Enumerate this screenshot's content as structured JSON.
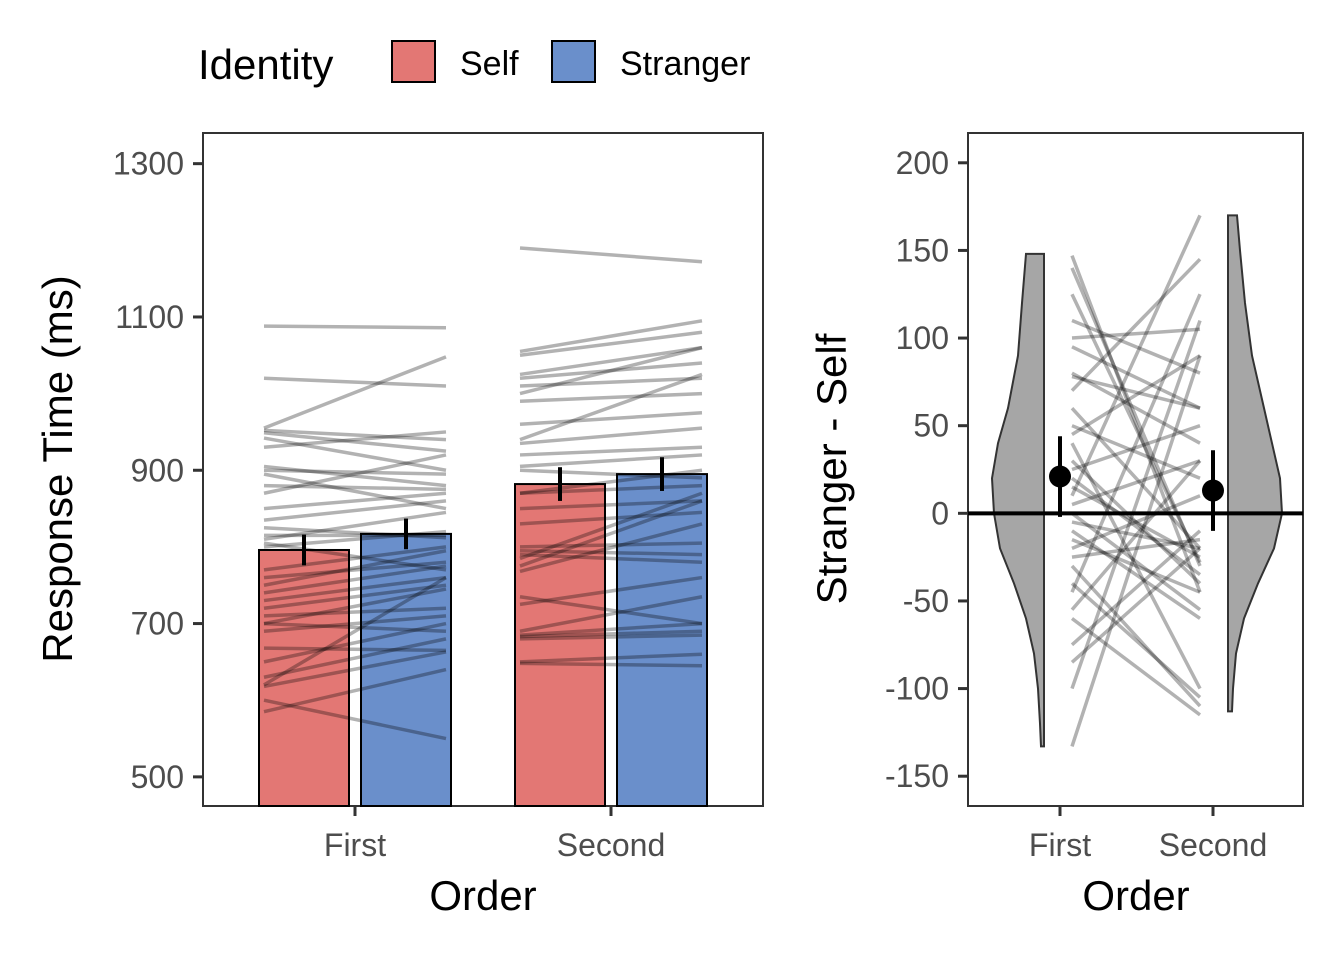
{
  "legend": {
    "title": "Identity",
    "items": [
      {
        "label": "Self",
        "color": "#e37774"
      },
      {
        "label": "Stranger",
        "color": "#6a8fcb"
      }
    ]
  },
  "chart_data": [
    {
      "type": "bar",
      "title": "",
      "xlabel": "Order",
      "ylabel": "Response Time (ms)",
      "categories": [
        "First",
        "Second"
      ],
      "ylim": [
        462,
        1340
      ],
      "yticks": [
        500,
        700,
        900,
        1100,
        1300
      ],
      "series": [
        {
          "name": "Self",
          "color": "#e37774",
          "values": [
            796,
            882
          ],
          "err": [
            20,
            22
          ]
        },
        {
          "name": "Stranger",
          "color": "#6a8fcb",
          "values": [
            817,
            895
          ],
          "err": [
            20,
            22
          ]
        }
      ],
      "paired_lines": [
        {
          "category": "First",
          "pairs": [
            [
              1088,
              1086
            ],
            [
              1020,
              1010
            ],
            [
              955,
              1048
            ],
            [
              952,
              940
            ],
            [
              949,
              925
            ],
            [
              942,
              900
            ],
            [
              930,
              950
            ],
            [
              900,
              895
            ],
            [
              905,
              880
            ],
            [
              895,
              850
            ],
            [
              880,
              875
            ],
            [
              870,
              920
            ],
            [
              850,
              870
            ],
            [
              835,
              860
            ],
            [
              825,
              812
            ],
            [
              815,
              815
            ],
            [
              810,
              845
            ],
            [
              800,
              820
            ],
            [
              805,
              770
            ],
            [
              770,
              800
            ],
            [
              760,
              780
            ],
            [
              750,
              795
            ],
            [
              740,
              775
            ],
            [
              730,
              760
            ],
            [
              720,
              750
            ],
            [
              700,
              745
            ],
            [
              710,
              720
            ],
            [
              700,
              690
            ],
            [
              690,
              710
            ],
            [
              668,
              665
            ],
            [
              650,
              700
            ],
            [
              620,
              760
            ],
            [
              630,
              680
            ],
            [
              618,
              663
            ],
            [
              585,
              640
            ],
            [
              600,
              550
            ]
          ]
        },
        {
          "category": "Second",
          "pairs": [
            [
              1190,
              1172
            ],
            [
              1055,
              1095
            ],
            [
              1050,
              1080
            ],
            [
              1025,
              1060
            ],
            [
              1020,
              1040
            ],
            [
              1010,
              1020
            ],
            [
              1000,
              1060
            ],
            [
              990,
              1000
            ],
            [
              960,
              975
            ],
            [
              940,
              1025
            ],
            [
              935,
              955
            ],
            [
              920,
              930
            ],
            [
              905,
              920
            ],
            [
              900,
              890
            ],
            [
              870,
              900
            ],
            [
              870,
              880
            ],
            [
              850,
              860
            ],
            [
              830,
              845
            ],
            [
              800,
              805
            ],
            [
              795,
              790
            ],
            [
              790,
              780
            ],
            [
              785,
              870
            ],
            [
              775,
              860
            ],
            [
              768,
              830
            ],
            [
              735,
              700
            ],
            [
              725,
              760
            ],
            [
              690,
              735
            ],
            [
              685,
              700
            ],
            [
              683,
              690
            ],
            [
              680,
              685
            ],
            [
              650,
              660
            ],
            [
              648,
              645
            ]
          ]
        }
      ]
    },
    {
      "type": "violin",
      "title": "",
      "xlabel": "Order",
      "ylabel": "Stranger - Self",
      "categories": [
        "First",
        "Second"
      ],
      "ylim": [
        -167,
        217
      ],
      "yticks": [
        -150,
        -100,
        -50,
        0,
        50,
        100,
        150,
        200
      ],
      "means": [
        21,
        13
      ],
      "ci": [
        [
          -2,
          44
        ],
        [
          -10,
          36
        ]
      ],
      "reference_line": 0,
      "paired_lines": [
        [
          147,
          -45
        ],
        [
          140,
          -30
        ],
        [
          125,
          -28
        ],
        [
          110,
          80
        ],
        [
          100,
          105
        ],
        [
          95,
          60
        ],
        [
          80,
          40
        ],
        [
          78,
          60
        ],
        [
          70,
          145
        ],
        [
          60,
          -20
        ],
        [
          50,
          20
        ],
        [
          45,
          90
        ],
        [
          40,
          -100
        ],
        [
          30,
          -40
        ],
        [
          25,
          50
        ],
        [
          20,
          -35
        ],
        [
          15,
          -25
        ],
        [
          10,
          170
        ],
        [
          5,
          30
        ],
        [
          0,
          -55
        ],
        [
          -5,
          -20
        ],
        [
          -10,
          -60
        ],
        [
          -15,
          -45
        ],
        [
          -20,
          10
        ],
        [
          -25,
          -15
        ],
        [
          -30,
          -110
        ],
        [
          -40,
          -105
        ],
        [
          -45,
          125
        ],
        [
          -55,
          30
        ],
        [
          -60,
          -115
        ],
        [
          -75,
          -10
        ],
        [
          -85,
          -20
        ],
        [
          -100,
          110
        ],
        [
          -133,
          90
        ]
      ]
    }
  ]
}
